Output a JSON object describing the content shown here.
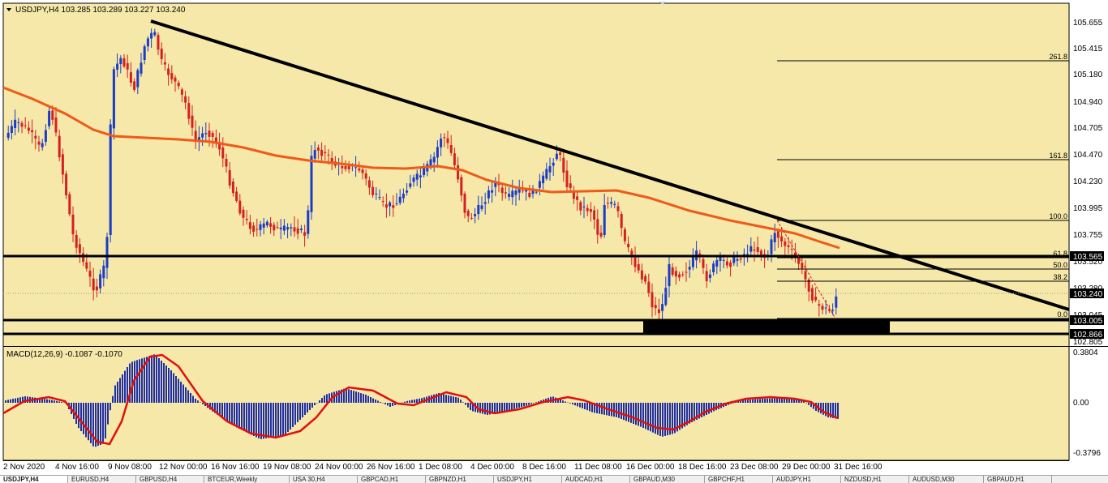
{
  "window": {
    "symbol_header": "USDJPY,H4  103.285 103.289 103.227 103.240",
    "menu_arrow_icon": "triangle-down-icon"
  },
  "colors": {
    "background": "#f5e8a8",
    "candle_up": "#1a3cc8",
    "candle_down": "#d62020",
    "ma_line": "#ef5a1a",
    "trendline": "#000000",
    "macd_hist": "#1f2fa8",
    "macd_signal": "#e01010",
    "support_zone": "#000000"
  },
  "price_axis": {
    "labels": [
      "105.655",
      "105.415",
      "105.180",
      "104.940",
      "104.705",
      "104.470",
      "104.230",
      "103.995",
      "103.755",
      "103.520",
      "103.280",
      "103.045",
      "102.805"
    ],
    "current_price": "103.240",
    "level_565": "103.565",
    "level_005": "103.005",
    "level_866": "102.866"
  },
  "fibonacci": {
    "levels": [
      "261.8",
      "161.8",
      "100.0",
      "61.8",
      "50.0",
      "38.2",
      "0.0"
    ]
  },
  "macd": {
    "label": "MACD(12,26,9) -0.1087 -0.1070",
    "axis_top": "0.3804",
    "axis_mid": "0.00",
    "axis_bottom": "-0.3796"
  },
  "time_axis": [
    "2 Nov 2020",
    "4 Nov 16:00",
    "9 Nov 08:00",
    "12 Nov 00:00",
    "16 Nov 16:00",
    "19 Nov 08:00",
    "24 Nov 00:00",
    "26 Nov 16:00",
    "1 Dec 08:00",
    "4 Dec 00:00",
    "8 Dec 16:00",
    "11 Dec 08:00",
    "16 Dec 00:00",
    "18 Dec 16:00",
    "23 Dec 08:00",
    "29 Dec 00:00",
    "31 Dec 16:00"
  ],
  "tabs": [
    "USDJPY,H4",
    "EURUSD,H4",
    "GBPUSD,H4",
    "BTCEUR,Weekly",
    "USA 30,H4",
    "GBPCAD,H1",
    "GBPNZD,H1",
    "USDJPY,H1",
    "AUDCAD,H1",
    "GBPAUD,M30",
    "GBPCHF,H1",
    "AUDJPY,H1",
    "NZDUSD,H1",
    "AUDUSD,M30",
    "GBPAUD,H1"
  ]
}
